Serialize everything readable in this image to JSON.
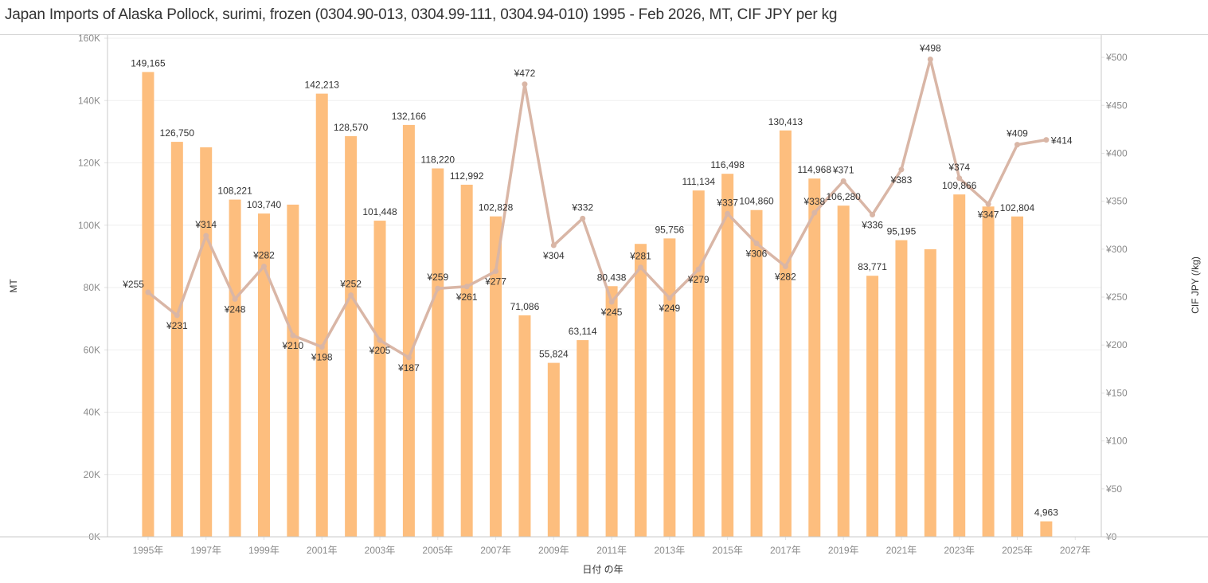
{
  "title": "Japan Imports of Alaska Pollock, surimi, frozen (0304.90-013, 0304.99-111, 0304.94-010) 1995 - Feb 2026, MT, CIF JPY per kg",
  "colors": {
    "bar": "#fdbe7e",
    "line": "#d9b6a6",
    "grid": "#efefef",
    "axis": "#c8c8c8"
  },
  "chart_data": {
    "type": "bar",
    "title": "Japan Imports of Alaska Pollock, surimi, frozen (0304.90-013, 0304.99-111, 0304.94-010) 1995 - Feb 2026, MT, CIF JPY per kg",
    "xlabel": "日付 の年",
    "ylabel": "MT",
    "y2label": "CIF JPY (/kg)",
    "ylim": [
      0,
      160000
    ],
    "y2lim": [
      0,
      520
    ],
    "grid": true,
    "x_range": [
      1993.6,
      2027.9
    ],
    "x_ticks": [
      1995,
      1997,
      1999,
      2001,
      2003,
      2005,
      2007,
      2009,
      2011,
      2013,
      2015,
      2017,
      2019,
      2021,
      2023,
      2025,
      2027
    ],
    "x_tick_labels": [
      "1995年",
      "1997年",
      "1999年",
      "2001年",
      "2003年",
      "2005年",
      "2007年",
      "2009年",
      "2011年",
      "2013年",
      "2015年",
      "2017年",
      "2019年",
      "2021年",
      "2023年",
      "2025年",
      "2027年"
    ],
    "y_ticks": [
      0,
      20000,
      40000,
      60000,
      80000,
      100000,
      120000,
      140000,
      160000
    ],
    "y_tick_labels": [
      "0K",
      "20K",
      "40K",
      "60K",
      "80K",
      "100K",
      "120K",
      "140K",
      "160K"
    ],
    "y2_ticks": [
      0,
      50,
      100,
      150,
      200,
      250,
      300,
      350,
      400,
      450,
      500
    ],
    "y2_tick_labels": [
      "¥0",
      "¥50",
      "¥100",
      "¥150",
      "¥200",
      "¥250",
      "¥300",
      "¥350",
      "¥400",
      "¥450",
      "¥500"
    ],
    "x": [
      1995,
      1996,
      1997,
      1998,
      1999,
      2000,
      2001,
      2002,
      2003,
      2004,
      2005,
      2006,
      2007,
      2008,
      2009,
      2010,
      2011,
      2012,
      2013,
      2014,
      2015,
      2016,
      2017,
      2018,
      2019,
      2020,
      2021,
      2022,
      2023,
      2024,
      2025,
      2026
    ],
    "series": [
      {
        "name": "MT",
        "type": "bar",
        "axis": "left",
        "values": [
          149165,
          126750,
          125000,
          108221,
          103740,
          106600,
          142213,
          128570,
          101448,
          132166,
          118220,
          112992,
          102828,
          71086,
          55824,
          63114,
          80438,
          94000,
          95756,
          111134,
          116498,
          104860,
          130413,
          114968,
          106280,
          83771,
          95195,
          92300,
          109866,
          106000,
          102804,
          4963
        ],
        "labels": [
          "149,165",
          "126,750",
          "",
          "108,221",
          "103,740",
          "",
          "142,213",
          "128,570",
          "101,448",
          "132,166",
          "118,220",
          "112,992",
          "102,828",
          "71,086",
          "55,824",
          "63,114",
          "80,438",
          "",
          "95,756",
          "111,134",
          "116,498",
          "104,860",
          "130,413",
          "114,968",
          "106,280",
          "83,771",
          "95,195",
          "",
          "109,866",
          "",
          "102,804",
          "4,963"
        ]
      },
      {
        "name": "CIF JPY (/kg)",
        "type": "line",
        "axis": "right",
        "values": [
          255,
          231,
          314,
          248,
          282,
          210,
          198,
          252,
          205,
          187,
          259,
          261,
          277,
          472,
          304,
          332,
          245,
          281,
          249,
          279,
          337,
          306,
          282,
          338,
          371,
          336,
          383,
          498,
          374,
          347,
          409,
          414
        ],
        "labels": [
          "¥255",
          "¥231",
          "¥314",
          "¥248",
          "¥282",
          "¥210",
          "¥198",
          "¥252",
          "¥205",
          "¥187",
          "¥259",
          "¥261",
          "¥277",
          "¥472",
          "¥304",
          "¥332",
          "¥245",
          "¥281",
          "¥249",
          "¥279",
          "¥337",
          "¥306",
          "¥282",
          "¥338",
          "¥371",
          "¥336",
          "¥383",
          "¥498",
          "¥374",
          "¥347",
          "¥409",
          "¥414"
        ],
        "label_positions": [
          "left",
          "below",
          "above",
          "below",
          "above",
          "below",
          "below",
          "above",
          "below",
          "below",
          "above",
          "below",
          "below",
          "above",
          "below",
          "above",
          "below",
          "above",
          "below",
          "below",
          "above",
          "below",
          "below",
          "above",
          "above",
          "below",
          "below",
          "above",
          "above",
          "below",
          "above",
          "right"
        ]
      }
    ]
  }
}
